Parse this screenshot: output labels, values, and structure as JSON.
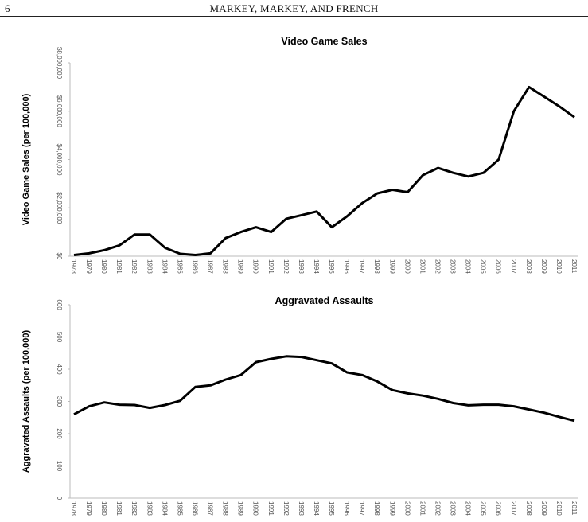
{
  "header": {
    "page_number": "6",
    "running_head": "MARKEY, MARKEY, AND FRENCH"
  },
  "chart_data": [
    {
      "type": "line",
      "title": "Video Game Sales",
      "xlabel": "",
      "ylabel": "Video Game Sales (per 100,000)",
      "ylim": [
        0,
        8000000
      ],
      "yticks": [
        0,
        2000000,
        4000000,
        6000000,
        8000000
      ],
      "ytick_labels": [
        "$0",
        "$2,000,000",
        "$4,000,000",
        "$6,000,000",
        "$8,000,000"
      ],
      "x": [
        "1978",
        "1979",
        "1980",
        "1981",
        "1982",
        "1983",
        "1984",
        "1985",
        "1986",
        "1987",
        "1988",
        "1989",
        "1990",
        "1991",
        "1992",
        "1993",
        "1994",
        "1995",
        "1996",
        "1997",
        "1998",
        "1999",
        "2000",
        "2001",
        "2002",
        "2003",
        "2004",
        "2005",
        "2006",
        "2007",
        "2008",
        "2009",
        "2010",
        "2011"
      ],
      "values": [
        50000,
        120000,
        250000,
        450000,
        900000,
        900000,
        350000,
        100000,
        50000,
        120000,
        750000,
        1000000,
        1200000,
        1000000,
        1550000,
        1700000,
        1850000,
        1200000,
        1650000,
        2200000,
        2600000,
        2750000,
        2650000,
        3350000,
        3650000,
        3450000,
        3300000,
        3450000,
        4000000,
        6000000,
        7000000,
        6600000,
        6200000,
        5750000
      ],
      "grid": false
    },
    {
      "type": "line",
      "title": "Aggravated Assaults",
      "xlabel": "",
      "ylabel": "Aggravated Assaults (per 100,000)",
      "ylim": [
        0,
        600
      ],
      "yticks": [
        0,
        100,
        200,
        300,
        400,
        500,
        600
      ],
      "ytick_labels": [
        "0",
        "100",
        "200",
        "300",
        "400",
        "500",
        "600"
      ],
      "x": [
        "1978",
        "1979",
        "1980",
        "1981",
        "1982",
        "1983",
        "1984",
        "1985",
        "1986",
        "1987",
        "1988",
        "1989",
        "1990",
        "1991",
        "1992",
        "1993",
        "1994",
        "1995",
        "1996",
        "1997",
        "1998",
        "1999",
        "2000",
        "2001",
        "2002",
        "2003",
        "2004",
        "2005",
        "2006",
        "2007",
        "2008",
        "2009",
        "2010",
        "2011"
      ],
      "values": [
        260,
        285,
        297,
        290,
        289,
        280,
        289,
        302,
        345,
        350,
        368,
        382,
        422,
        432,
        440,
        438,
        428,
        418,
        390,
        382,
        362,
        335,
        325,
        318,
        308,
        295,
        288,
        290,
        290,
        285,
        275,
        265,
        252,
        240
      ],
      "grid": false
    }
  ]
}
